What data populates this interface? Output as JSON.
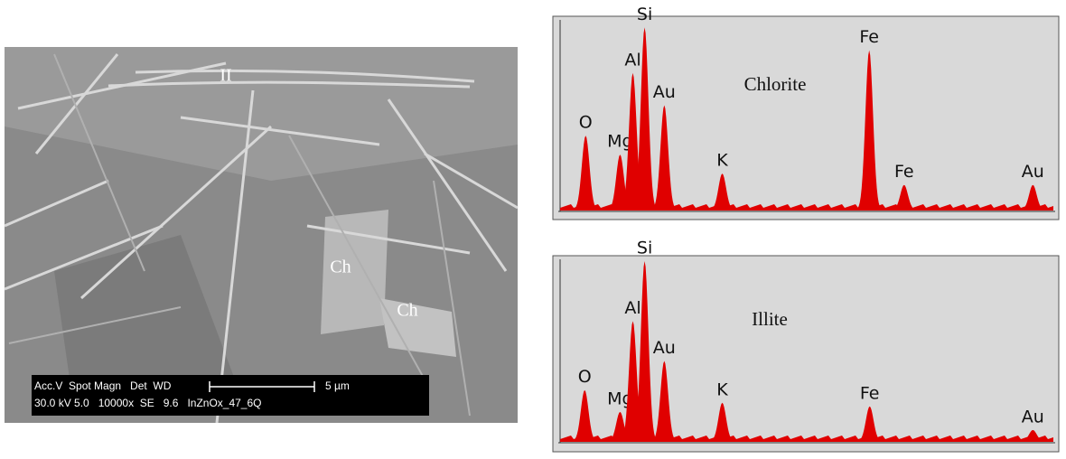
{
  "sem_image": {
    "labels": [
      "II",
      "Ch",
      "Ch"
    ],
    "info_header": "Acc.V  Spot Magn   Det  WD",
    "scale": "5 µm",
    "info_values": "30.0 kV 5.0   10000x  SE   9.6   InZnOx_47_6Q"
  },
  "spectra": [
    {
      "title": "Chlorite",
      "ylim": [
        0,
        100
      ],
      "xlim": [
        0,
        10
      ],
      "peaks": [
        {
          "label": "O",
          "energy": 0.52,
          "height": 39
        },
        {
          "label": "Mg",
          "energy": 1.22,
          "height": 29
        },
        {
          "label": "Al",
          "energy": 1.48,
          "height": 72
        },
        {
          "label": "Si",
          "energy": 1.72,
          "height": 96
        },
        {
          "label": "Au",
          "energy": 2.12,
          "height": 55
        },
        {
          "label": "K",
          "energy": 3.3,
          "height": 19
        },
        {
          "label": "Fe",
          "energy": 6.29,
          "height": 84
        },
        {
          "label": "Fe",
          "energy": 7.0,
          "height": 13
        },
        {
          "label": "Au",
          "energy": 9.62,
          "height": 13
        }
      ]
    },
    {
      "title": "Illite",
      "ylim": [
        0,
        100
      ],
      "xlim": [
        0,
        10
      ],
      "peaks": [
        {
          "label": "O",
          "energy": 0.5,
          "height": 28
        },
        {
          "label": "Mg",
          "energy": 1.22,
          "height": 16
        },
        {
          "label": "Al",
          "energy": 1.48,
          "height": 66
        },
        {
          "label": "Si",
          "energy": 1.72,
          "height": 99
        },
        {
          "label": "Au",
          "energy": 2.12,
          "height": 44
        },
        {
          "label": "K",
          "energy": 3.3,
          "height": 21
        },
        {
          "label": "Fe",
          "energy": 6.3,
          "height": 19
        },
        {
          "label": "Au",
          "energy": 9.62,
          "height": 6
        }
      ]
    }
  ]
}
